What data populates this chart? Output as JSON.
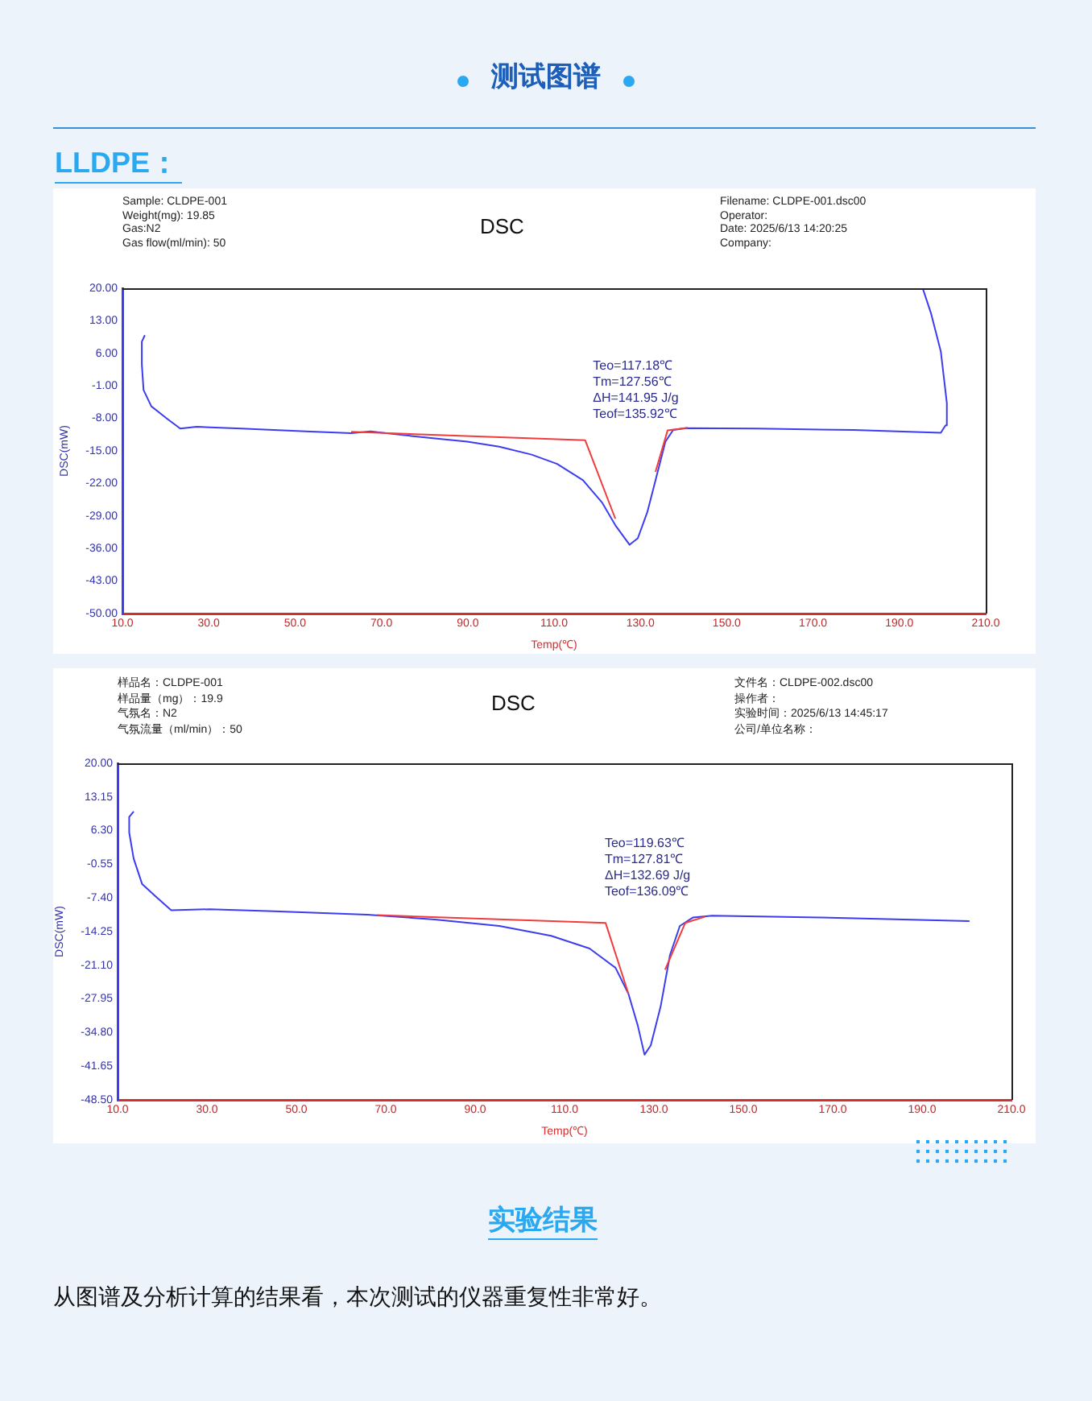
{
  "chart_data": [
    {
      "type": "line",
      "title": "DSC",
      "xlabel": "Temp(℃)",
      "ylabel": "DSC(mW)",
      "annotations": [
        "测试图谱",
        "LLDPE：",
        "Sample: CLDPE-001",
        "Weight(mg): 19.85",
        "Gas:N2",
        "Gas flow(ml/min): 50",
        "Filename: CLDPE-001.dsc00",
        "Operator:",
        "Date: 2025/6/13 14:20:25",
        "Company:",
        "Teo=117.18℃",
        "Tm=127.56℃",
        "ΔH=141.95 J/g",
        "Teof=135.92℃"
      ],
      "xlim": [
        10,
        210
      ],
      "xticks": [
        {
          "value": 10,
          "label": "10.0"
        },
        {
          "value": 30,
          "label": "30.0"
        },
        {
          "value": 50,
          "label": "50.0"
        },
        {
          "value": 70,
          "label": "70.0"
        },
        {
          "value": 90,
          "label": "90.0"
        },
        {
          "value": 110,
          "label": "110.0"
        },
        {
          "value": 130,
          "label": "130.0"
        },
        {
          "value": 150,
          "label": "150.0"
        },
        {
          "value": 170,
          "label": "170.0"
        },
        {
          "value": 190,
          "label": "190.0"
        },
        {
          "value": 210,
          "label": "210.0"
        }
      ],
      "ylim": [
        -50,
        20
      ],
      "yticks": [
        {
          "value": 20,
          "label": "20.00"
        },
        {
          "value": 13,
          "label": "13.00"
        },
        {
          "value": 6,
          "label": "6.00"
        },
        {
          "value": -1,
          "label": "-1.00"
        },
        {
          "value": -8,
          "label": "-8.00"
        },
        {
          "value": -15,
          "label": "-15.00"
        },
        {
          "value": -22,
          "label": "-22.00"
        },
        {
          "value": -29,
          "label": "-29.00"
        },
        {
          "value": -36,
          "label": "-36.00"
        },
        {
          "value": -43,
          "label": "-43.00"
        },
        {
          "value": -50,
          "label": "-50.00"
        }
      ],
      "grid": false,
      "legend": false,
      "marker": "none",
      "line_style": "solid",
      "series": [
        {
          "color": "#3c3cf0",
          "x": [
            15.2,
            14.5,
            14.5,
            14.9,
            16.7,
            20.4,
            23.4,
            27.2,
            37.6,
            52.5,
            63,
            67.5,
            75,
            82.4,
            89.9,
            97.3,
            104.8,
            110.7,
            116.7,
            121.2,
            124.2,
            127.5,
            129.4,
            131.6,
            133.9,
            135.8,
            137.6,
            140.6,
            157,
            179.4,
            199.6,
            200.7,
            201,
            199.6,
            197.3,
            195.4
          ],
          "values": [
            9.9,
            8.5,
            3.6,
            -1.9,
            -5.4,
            -8.1,
            -10.2,
            -9.8,
            -10.2,
            -10.8,
            -11.2,
            -10.8,
            -11.6,
            -12.3,
            -13,
            -14.1,
            -15.8,
            -17.8,
            -21.3,
            -26.2,
            -31,
            -35.2,
            -33.8,
            -28.2,
            -19.9,
            -13,
            -10.5,
            -10.1,
            -10.2,
            -10.5,
            -11.1,
            -9.5,
            -4.7,
            6.4,
            14.7,
            20
          ]
        },
        {
          "color": "#f03c3c",
          "x": [
            63,
            117.2,
            124.2,
            128,
            133.5,
            136.3,
            141
          ],
          "values": [
            -10.9,
            -12.7,
            -29.6,
            null,
            -19.5,
            -10.6,
            -10
          ]
        }
      ]
    },
    {
      "type": "line",
      "title": "DSC",
      "xlabel": "Temp(℃)",
      "ylabel": "DSC(mW)",
      "annotations": [
        "样品名：CLDPE-001",
        "样品量（mg）：19.9",
        "气氛名：N2",
        "气氛流量（ml/min）：50",
        "文件名：CLDPE-002.dsc00",
        "操作者：",
        "实验时间：2025/6/13 14:45:17",
        "公司/单位名称：",
        "Teo=119.63℃",
        "Tm=127.81℃",
        "ΔH=132.69 J/g",
        "Teof=136.09℃",
        "实验结果",
        "从图谱及分析计算的结果看，本次测试的仪器重复性非常好。"
      ],
      "xlim": [
        10,
        210
      ],
      "xticks": [
        {
          "value": 10,
          "label": "10.0"
        },
        {
          "value": 30,
          "label": "30.0"
        },
        {
          "value": 50,
          "label": "50.0"
        },
        {
          "value": 70,
          "label": "70.0"
        },
        {
          "value": 90,
          "label": "90.0"
        },
        {
          "value": 110,
          "label": "110.0"
        },
        {
          "value": 130,
          "label": "130.0"
        },
        {
          "value": 150,
          "label": "150.0"
        },
        {
          "value": 170,
          "label": "170.0"
        },
        {
          "value": 190,
          "label": "190.0"
        },
        {
          "value": 210,
          "label": "210.0"
        }
      ],
      "ylim": [
        -48.5,
        20
      ],
      "yticks": [
        {
          "value": 20,
          "label": "20.00"
        },
        {
          "value": 13.15,
          "label": "13.15"
        },
        {
          "value": 6.3,
          "label": "6.30"
        },
        {
          "value": -0.55,
          "label": "-0.55"
        },
        {
          "value": -7.4,
          "label": "-7.40"
        },
        {
          "value": -14.25,
          "label": "-14.25"
        },
        {
          "value": -21.1,
          "label": "-21.10"
        },
        {
          "value": -27.95,
          "label": "-27.95"
        },
        {
          "value": -34.8,
          "label": "-34.80"
        },
        {
          "value": -41.65,
          "label": "-41.65"
        },
        {
          "value": -48.5,
          "label": "-48.50"
        }
      ],
      "grid": false,
      "legend": false,
      "marker": "none",
      "line_style": "solid",
      "series": [
        {
          "color": "#3c3cf0",
          "x": [
            13.6,
            12.6,
            12.6,
            13.6,
            15.5,
            18.4,
            22,
            30.6,
            45,
            65.9,
            81,
            95.4,
            107,
            115.6,
            121.4,
            124.3,
            126.4,
            127.9,
            129.3,
            131.5,
            133.6,
            135.8,
            138.7,
            143,
            167.5,
            200.6
          ],
          "values": [
            10.2,
            9.1,
            5.9,
            0.6,
            -4.6,
            -7,
            -9.9,
            -9.7,
            -10.1,
            -10.8,
            -11.8,
            -13.1,
            -15.1,
            -17.7,
            -21.6,
            -26.9,
            -33.4,
            -39.3,
            -37.4,
            -29.5,
            -19,
            -13.1,
            -11.4,
            -11,
            -11.4,
            -12.1
          ]
        },
        {
          "color": "#f03c3c",
          "x": [
            68.1,
            119.2,
            124.3,
            128,
            132.5,
            137,
            141.5
          ],
          "values": [
            -10.9,
            -12.5,
            -26.9,
            null,
            -22,
            -12.5,
            -11.2
          ]
        }
      ]
    }
  ]
}
